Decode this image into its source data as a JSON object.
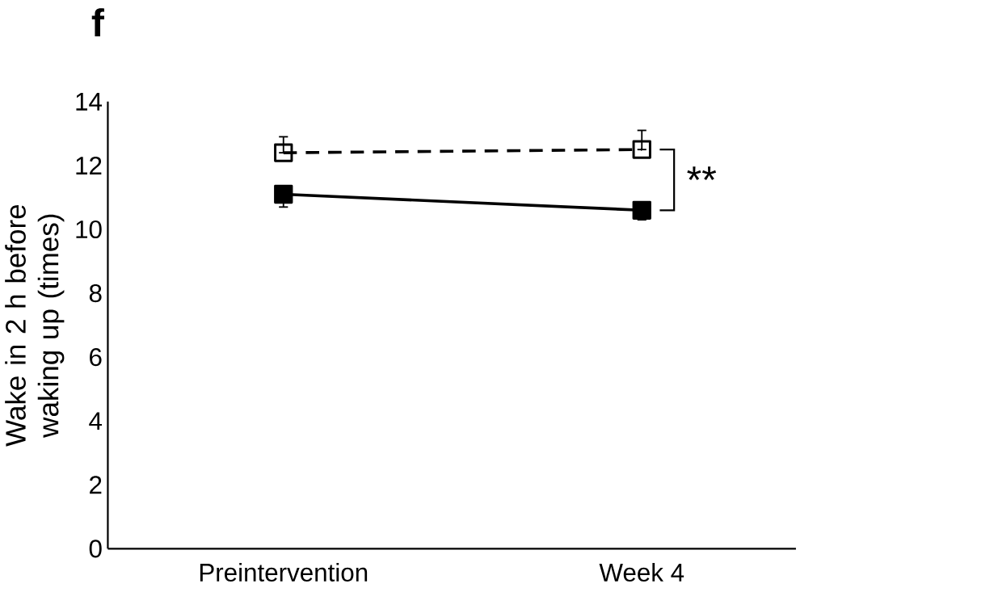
{
  "chart_data": {
    "type": "line",
    "title": "f",
    "ylabel": "Wake in 2 h before waking up (times)",
    "categories": [
      "Preintervention",
      "Week 4"
    ],
    "series": [
      {
        "color": "#000000",
        "line_style": "dashed",
        "marker": "square",
        "values": [
          12.4,
          12.5
        ],
        "errors": [
          [
            12.4,
            12.9
          ],
          [
            12.5,
            13.1
          ]
        ]
      },
      {
        "color": "#000000",
        "line_style": "solid",
        "marker": "square",
        "values": [
          11.1,
          10.6
        ],
        "errors": [
          [
            10.7,
            11.1
          ],
          [
            10.3,
            10.6
          ]
        ]
      }
    ],
    "ylim": [
      0,
      14
    ],
    "yticks": [
      0,
      2,
      4,
      6,
      8,
      10,
      12,
      14
    ],
    "annotations": [
      "**"
    ]
  }
}
